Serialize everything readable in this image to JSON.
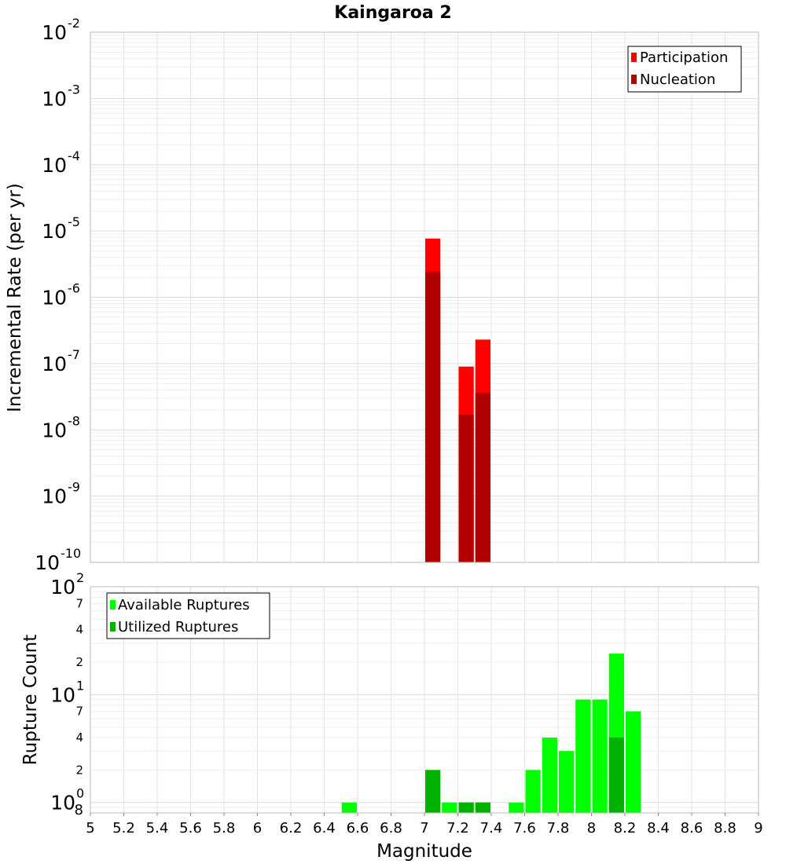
{
  "chart_data": [
    {
      "type": "bar",
      "title": "Kaingaroa 2",
      "ylabel": "Incremental Rate (per yr)",
      "xlabel": "",
      "yscale": "log",
      "ylim": [
        1e-10,
        0.01
      ],
      "xlim": [
        5,
        9
      ],
      "bin_width": 0.1,
      "grid": true,
      "legend_position": "top-right",
      "y_tick_labels": [
        {
          "base": "10",
          "exp": "-10"
        },
        {
          "base": "10",
          "exp": "-9"
        },
        {
          "base": "10",
          "exp": "-8"
        },
        {
          "base": "10",
          "exp": "-7"
        },
        {
          "base": "10",
          "exp": "-6"
        },
        {
          "base": "10",
          "exp": "-5"
        },
        {
          "base": "10",
          "exp": "-4"
        },
        {
          "base": "10",
          "exp": "-3"
        },
        {
          "base": "10",
          "exp": "-2"
        }
      ],
      "series": [
        {
          "name": "Participation",
          "color": "#ff0000",
          "points": [
            {
              "x": 7.05,
              "y": 7.7e-06
            },
            {
              "x": 7.25,
              "y": 9e-08
            },
            {
              "x": 7.35,
              "y": 2.3e-07
            }
          ]
        },
        {
          "name": "Nucleation",
          "color": "#b20000",
          "points": [
            {
              "x": 7.05,
              "y": 2.4e-06
            },
            {
              "x": 7.25,
              "y": 1.7e-08
            },
            {
              "x": 7.35,
              "y": 3.6e-08
            }
          ]
        }
      ]
    },
    {
      "type": "bar",
      "title": "",
      "ylabel": "Rupture Count",
      "xlabel": "Magnitude",
      "yscale": "log",
      "ylim": [
        0.8,
        100
      ],
      "xlim": [
        5,
        9
      ],
      "bin_width": 0.1,
      "grid": true,
      "legend_position": "top-left",
      "x_ticks": [
        "5",
        "5.2",
        "5.4",
        "5.6",
        "5.8",
        "6",
        "6.2",
        "6.4",
        "6.6",
        "6.8",
        "7",
        "7.2",
        "7.4",
        "7.6",
        "7.8",
        "8",
        "8.2",
        "8.4",
        "8.6",
        "8.8",
        "9"
      ],
      "y_major_ticks": [
        {
          "value": 1,
          "base": "10",
          "exp": "0"
        },
        {
          "value": 10,
          "base": "10",
          "exp": "1"
        },
        {
          "value": 100,
          "base": "10",
          "exp": "2"
        }
      ],
      "y_minor_ticks": [
        {
          "value": 0.8,
          "label": "8"
        },
        {
          "value": 2,
          "label": "2"
        },
        {
          "value": 4,
          "label": "4"
        },
        {
          "value": 7,
          "label": "7"
        },
        {
          "value": 20,
          "label": "2"
        },
        {
          "value": 40,
          "label": "4"
        },
        {
          "value": 70,
          "label": "7"
        }
      ],
      "series": [
        {
          "name": "Available Ruptures",
          "color": "#00ff00",
          "points": [
            {
              "x": 6.55,
              "y": 1
            },
            {
              "x": 7.05,
              "y": 2
            },
            {
              "x": 7.15,
              "y": 1
            },
            {
              "x": 7.25,
              "y": 1
            },
            {
              "x": 7.35,
              "y": 1
            },
            {
              "x": 7.55,
              "y": 1
            },
            {
              "x": 7.65,
              "y": 2
            },
            {
              "x": 7.75,
              "y": 4
            },
            {
              "x": 7.85,
              "y": 3
            },
            {
              "x": 7.95,
              "y": 9
            },
            {
              "x": 8.05,
              "y": 9
            },
            {
              "x": 8.15,
              "y": 24
            },
            {
              "x": 8.25,
              "y": 7
            }
          ]
        },
        {
          "name": "Utilized Ruptures",
          "color": "#00b200",
          "points": [
            {
              "x": 7.05,
              "y": 2
            },
            {
              "x": 7.25,
              "y": 1
            },
            {
              "x": 7.35,
              "y": 1
            },
            {
              "x": 8.15,
              "y": 4
            }
          ]
        }
      ]
    }
  ]
}
